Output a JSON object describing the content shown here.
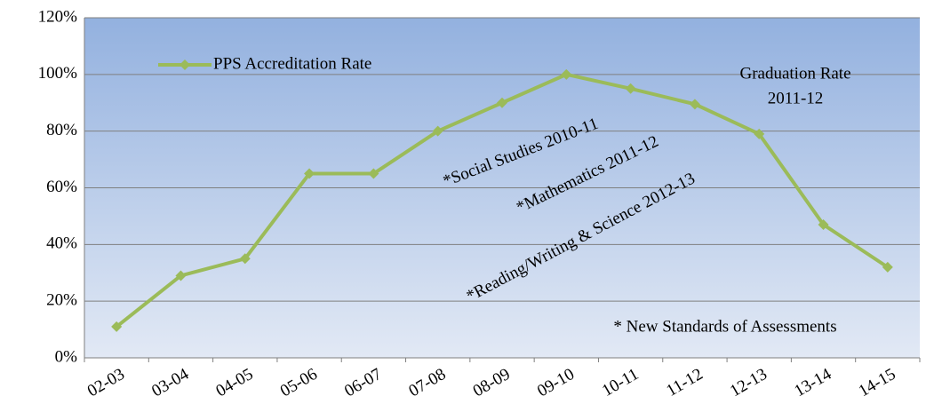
{
  "chart_data": {
    "type": "line",
    "categories": [
      "02-03",
      "03-04",
      "04-05",
      "05-06",
      "06-07",
      "07-08",
      "08-09",
      "09-10",
      "10-11",
      "11-12",
      "12-13",
      "13-14",
      "14-15"
    ],
    "series": [
      {
        "name": "PPS Accreditation Rate",
        "color": "#9bbb59",
        "values": [
          11,
          29,
          35,
          65,
          65,
          80,
          90,
          100,
          95,
          89.5,
          79,
          47,
          32
        ]
      }
    ],
    "ylim": [
      0,
      120
    ],
    "yticks": [
      {
        "value": 0,
        "label": "0%"
      },
      {
        "value": 20,
        "label": "20%"
      },
      {
        "value": 40,
        "label": "40%"
      },
      {
        "value": 60,
        "label": "60%"
      },
      {
        "value": 80,
        "label": "80%"
      },
      {
        "value": 100,
        "label": "100%"
      },
      {
        "value": 120,
        "label": "120%"
      }
    ],
    "grid": true,
    "legend": "top-left",
    "annotations": [
      "*Social Studies 2010-11",
      "*Mathematics 2011-12",
      "*Reading/Writing & Science 2012-13",
      "Graduation Rate",
      "2011-12",
      "* New Standards of Assessments"
    ]
  }
}
